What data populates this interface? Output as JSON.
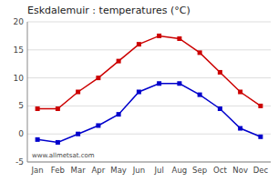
{
  "chart_data": {
    "type": "line",
    "title": "Eskdalemuir : temperatures (°C)",
    "categories": [
      "Jan",
      "Feb",
      "Mar",
      "Apr",
      "May",
      "Jun",
      "Jul",
      "Aug",
      "Sep",
      "Oct",
      "Nov",
      "Dec"
    ],
    "series": [
      {
        "color": "#cc0000",
        "marker": "square",
        "values": [
          4.5,
          4.5,
          7.5,
          10.0,
          13.0,
          16.0,
          17.5,
          17.0,
          14.5,
          11.0,
          7.5,
          5.0
        ]
      },
      {
        "color": "#0000cc",
        "marker": "square",
        "values": [
          -1.0,
          -1.5,
          0.0,
          1.5,
          3.5,
          7.5,
          9.0,
          9.0,
          7.0,
          4.5,
          1.0,
          -0.5
        ]
      }
    ],
    "ylim": [
      -5,
      20
    ],
    "yticks": [
      -5,
      0,
      5,
      10,
      15,
      20
    ],
    "grid": true,
    "annotations": [
      "www.allmetsat.com"
    ]
  }
}
